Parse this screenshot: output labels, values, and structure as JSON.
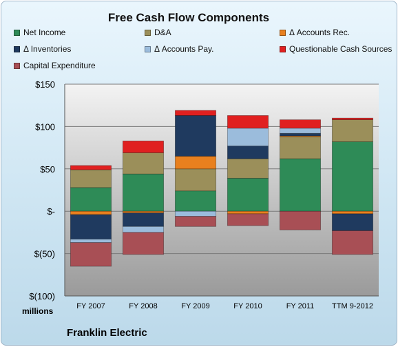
{
  "chart_data": {
    "type": "bar",
    "stacked": true,
    "title": "Free Cash Flow Components",
    "categories": [
      "FY 2007",
      "FY 2008",
      "FY 2009",
      "FY 2010",
      "FY 2011",
      "TTM 9-2012"
    ],
    "ylim": [
      -100,
      150
    ],
    "yticks": [
      150,
      100,
      50,
      0,
      -50,
      -100
    ],
    "ytick_labels": [
      "$150",
      "$100",
      "$50",
      "$-",
      "$(50)",
      "$(100)"
    ],
    "units_label": "millions",
    "grid": true,
    "legend_position": "top",
    "series": [
      {
        "name": "Net Income",
        "color": "#2e8b57",
        "values": [
          28,
          44,
          24,
          39,
          62,
          82
        ]
      },
      {
        "name": "D&A",
        "color": "#9b8f5a",
        "values": [
          21,
          25,
          26,
          23,
          26,
          26
        ]
      },
      {
        "name": "Δ Accounts Rec.",
        "color": "#e8801e",
        "values": [
          -4,
          -2,
          15,
          -3,
          1,
          -3
        ]
      },
      {
        "name": "Δ Inventories",
        "color": "#1f3a5f",
        "values": [
          -29,
          -16,
          48,
          15,
          3,
          -20
        ]
      },
      {
        "name": "Δ Accounts Pay.",
        "color": "#9bbcdc",
        "values": [
          -4,
          -7,
          -6,
          21,
          6,
          0
        ]
      },
      {
        "name": "Questionable Cash Sources",
        "color": "#e02020",
        "values": [
          5,
          14,
          6,
          15,
          10,
          2
        ]
      },
      {
        "name": "Capital Expenditure",
        "color": "#a84f55",
        "values": [
          -28,
          -26,
          -12,
          -14,
          -22,
          -28
        ]
      }
    ]
  },
  "footer": {
    "company": "Franklin Electric"
  }
}
